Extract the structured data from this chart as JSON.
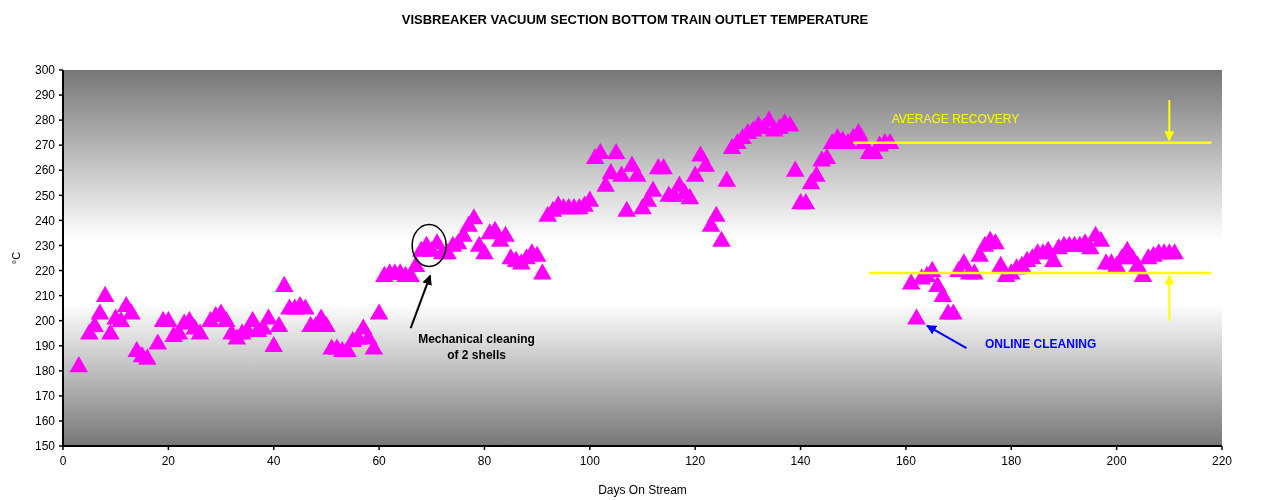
{
  "chart_data": {
    "type": "scatter",
    "title": "VISBREAKER  VACUUM SECTION BOTTOM TRAIN OUTLET TEMPERATURE",
    "xlabel": "Days On Stream",
    "ylabel": "°C",
    "xlim": [
      0,
      220
    ],
    "xticks": [
      0,
      20,
      40,
      60,
      80,
      100,
      120,
      140,
      160,
      180,
      200,
      220
    ],
    "ylim": [
      150,
      300
    ],
    "yticks": [
      150,
      160,
      170,
      180,
      190,
      200,
      210,
      220,
      230,
      240,
      250,
      260,
      270,
      280,
      290,
      300
    ],
    "grid": false,
    "marker": "triangle",
    "annotations": [
      "Mechanical cleaning\nof 2 shells",
      "AVERAGE RECOVERY",
      "ONLINE CLEANING"
    ],
    "series": [
      {
        "color": "#ff00ff",
        "x": [
          3,
          5,
          6,
          7,
          8,
          9,
          10,
          11,
          12,
          13,
          14,
          15,
          16,
          18,
          19,
          20,
          21,
          22,
          23,
          24,
          25,
          26,
          28,
          29,
          30,
          31,
          32,
          33,
          34,
          35,
          36,
          37,
          38,
          39,
          40,
          41,
          42,
          43,
          44,
          45,
          46,
          47,
          48,
          49,
          50,
          51,
          52,
          53,
          54,
          55,
          56,
          57,
          58,
          59,
          60,
          61,
          62,
          63,
          64,
          65,
          66,
          67,
          68,
          69,
          70,
          71,
          72,
          73,
          74,
          75,
          76,
          77,
          78,
          79,
          80,
          81,
          82,
          83,
          84,
          85,
          86,
          87,
          88,
          89,
          90,
          91,
          92,
          93,
          94,
          95,
          96,
          97,
          98,
          99,
          100,
          101,
          102,
          103,
          104,
          105,
          106,
          107,
          108,
          109,
          110,
          111,
          112,
          113,
          114,
          115,
          116,
          117,
          118,
          119,
          120,
          121,
          122,
          123,
          124,
          125,
          126,
          127,
          128,
          129,
          130,
          131,
          132,
          133,
          134,
          135,
          136,
          137,
          138,
          139,
          140,
          141,
          142,
          143,
          144,
          145,
          146,
          147,
          148,
          149,
          150,
          151,
          152,
          153,
          154,
          155,
          156,
          157,
          161,
          162,
          163,
          164,
          165,
          166,
          167,
          168,
          169,
          170,
          171,
          172,
          173,
          174,
          175,
          176,
          177,
          178,
          179,
          180,
          181,
          182,
          183,
          184,
          185,
          186,
          187,
          188,
          189,
          190,
          191,
          192,
          193,
          194,
          195,
          196,
          197,
          198,
          199,
          200,
          201,
          202,
          203,
          204,
          205,
          206,
          207,
          208,
          209,
          210,
          211
        ],
        "values": [
          182,
          195,
          198,
          203,
          210,
          195,
          201,
          200,
          206,
          203,
          188,
          186,
          185,
          191,
          200,
          200,
          194,
          195,
          199,
          200,
          197,
          195,
          200,
          202,
          203,
          200,
          195,
          193,
          195,
          196,
          200,
          196,
          197,
          201,
          190,
          198,
          214,
          205,
          205,
          206,
          205,
          198,
          198,
          201,
          198,
          189,
          189,
          188,
          188,
          192,
          193,
          197,
          193,
          189,
          203,
          218,
          219,
          219,
          219,
          218,
          218,
          222,
          228,
          230,
          228,
          231,
          227,
          227,
          230,
          231,
          234,
          238,
          241,
          230,
          227,
          235,
          236,
          232,
          234,
          225,
          224,
          223,
          225,
          227,
          226,
          219,
          242,
          244,
          246,
          245,
          245,
          245,
          245,
          246,
          248,
          265,
          267,
          254,
          259,
          267,
          258,
          244,
          262,
          258,
          245,
          248,
          252,
          261,
          261,
          250,
          250,
          254,
          251,
          249,
          258,
          266,
          262,
          238,
          242,
          232,
          256,
          269,
          271,
          273,
          275,
          276,
          278,
          277,
          280,
          276,
          277,
          279,
          278,
          260,
          247,
          247,
          255,
          258,
          264,
          265,
          271,
          273,
          272,
          271,
          273,
          275,
          271,
          267,
          267,
          270,
          271,
          271,
          215,
          201,
          217,
          218,
          220,
          214,
          210,
          203,
          203,
          220,
          223,
          219,
          219,
          226,
          230,
          232,
          231,
          222,
          218,
          219,
          221,
          222,
          224,
          225,
          227,
          227,
          228,
          224,
          229,
          230,
          230,
          230,
          230,
          231,
          229,
          234,
          232,
          223,
          223,
          222,
          225,
          228,
          225,
          222,
          218,
          225,
          226,
          227,
          227,
          227,
          227
        ]
      },
      {
        "type": "line",
        "color": "#ffff00",
        "marker": "none",
        "x": [
          150,
          218
        ],
        "values": [
          271,
          271
        ]
      },
      {
        "type": "line",
        "color": "#ffff00",
        "marker": "none",
        "x": [
          153,
          218
        ],
        "values": [
          219,
          219
        ]
      }
    ]
  }
}
